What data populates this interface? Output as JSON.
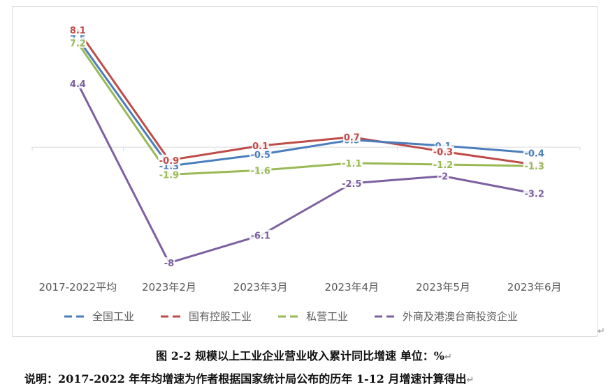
{
  "chart_data": {
    "type": "line",
    "categories": [
      "2017-2022平均",
      "2023年2月",
      "2023年3月",
      "2023年4月",
      "2023年5月",
      "2023年6月"
    ],
    "series": [
      {
        "name": "全国工业",
        "color": "#4a7ebb",
        "values": [
          7.5,
          -1.3,
          -0.5,
          0.5,
          0.1,
          -0.4
        ],
        "labels": [
          "7.5",
          "-1.3",
          "-0.5",
          "0.5",
          "0.1",
          "-0.4"
        ]
      },
      {
        "name": "国有控股工业",
        "color": "#be4b48",
        "values": [
          8.1,
          -0.9,
          0.1,
          0.7,
          -0.3,
          -1.2
        ],
        "labels": [
          "8.1",
          "-0.9",
          "0.1",
          "0.7",
          "-0.3",
          "-1.2"
        ]
      },
      {
        "name": "私营工业",
        "color": "#98b954",
        "values": [
          7.2,
          -1.9,
          -1.6,
          -1.1,
          -1.2,
          -1.3
        ],
        "labels": [
          "7.2",
          "-1.9",
          "-1.6",
          "-1.1",
          "-1.2",
          "-1.3"
        ]
      },
      {
        "name": "外商及港澳台商投资企业",
        "color": "#7d60a0",
        "values": [
          4.4,
          -8,
          -6.1,
          -2.5,
          -2,
          -3.2
        ],
        "labels": [
          "4.4",
          "-8",
          "-6.1",
          "-2.5",
          "-2",
          "-3.2"
        ]
      }
    ],
    "ylim": [
      -9.2,
      9.5
    ],
    "legend_position": "bottom",
    "grid": false
  },
  "caption": "图 2-2  规模以上工业企业营业收入累计同比增速    单位：%",
  "note": "说明：2017-2022 年年均增速为作者根据国家统计局公布的历年 1-12 月增速计算得出",
  "return_mark": "↵"
}
